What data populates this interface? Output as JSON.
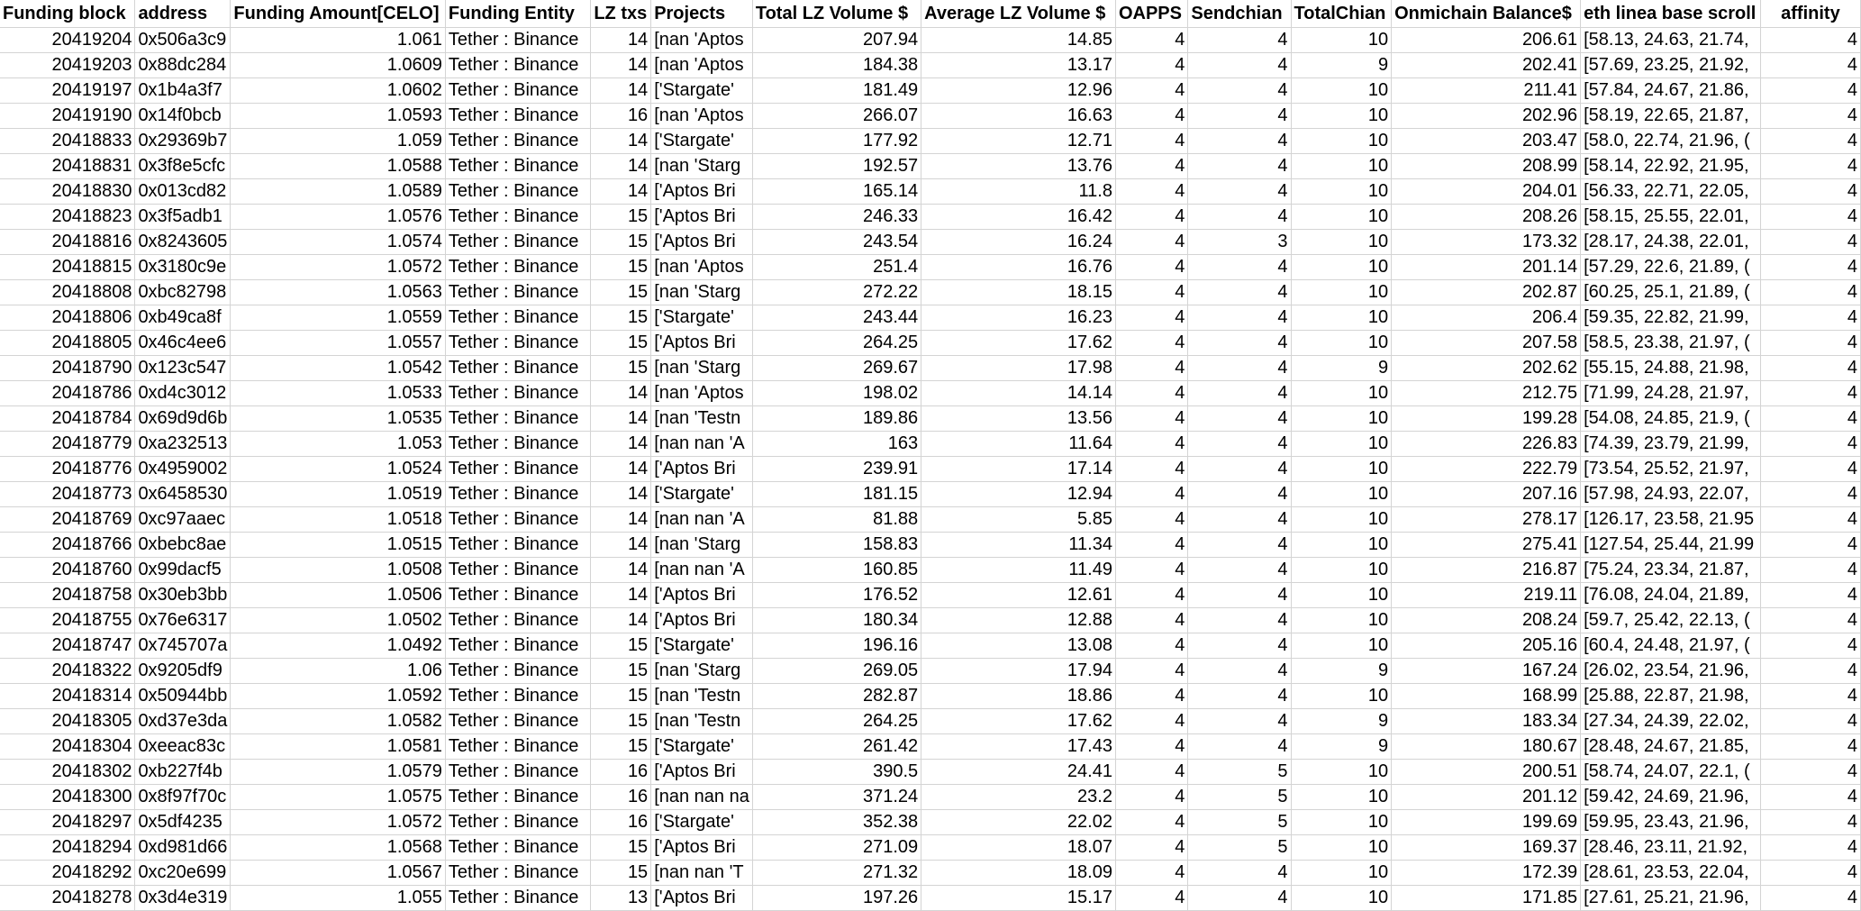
{
  "columns": [
    "Funding block",
    "address",
    "Funding Amount[CELO]",
    "Funding Entity",
    "LZ txs",
    "Projects",
    "Total LZ Volume $",
    "Average LZ Volume $",
    "OAPPS",
    "Sendchian",
    "TotalChian",
    "Onmichain Balance$",
    "eth linea base scroll",
    "affinity"
  ],
  "rows": [
    [
      "20419204",
      "0x506a3c9",
      "1.061",
      "Tether : Binance",
      "14",
      "[nan 'Aptos",
      "207.94",
      "14.85",
      "4",
      "4",
      "10",
      "206.61",
      "[58.13, 24.63, 21.74,",
      "4"
    ],
    [
      "20419203",
      "0x88dc284",
      "1.0609",
      "Tether : Binance",
      "14",
      "[nan 'Aptos",
      "184.38",
      "13.17",
      "4",
      "4",
      "9",
      "202.41",
      "[57.69, 23.25, 21.92,",
      "4"
    ],
    [
      "20419197",
      "0x1b4a3f7",
      "1.0602",
      "Tether : Binance",
      "14",
      "['Stargate'",
      "181.49",
      "12.96",
      "4",
      "4",
      "10",
      "211.41",
      "[57.84, 24.67, 21.86,",
      "4"
    ],
    [
      "20419190",
      "0x14f0bcb",
      "1.0593",
      "Tether : Binance",
      "16",
      "[nan 'Aptos",
      "266.07",
      "16.63",
      "4",
      "4",
      "10",
      "202.96",
      "[58.19, 22.65, 21.87,",
      "4"
    ],
    [
      "20418833",
      "0x29369b7",
      "1.059",
      "Tether : Binance",
      "14",
      "['Stargate'",
      "177.92",
      "12.71",
      "4",
      "4",
      "10",
      "203.47",
      "[58.0, 22.74, 21.96, (",
      "4"
    ],
    [
      "20418831",
      "0x3f8e5cfc",
      "1.0588",
      "Tether : Binance",
      "14",
      "[nan 'Starg",
      "192.57",
      "13.76",
      "4",
      "4",
      "10",
      "208.99",
      "[58.14, 22.92, 21.95,",
      "4"
    ],
    [
      "20418830",
      "0x013cd82",
      "1.0589",
      "Tether : Binance",
      "14",
      "['Aptos Bri",
      "165.14",
      "11.8",
      "4",
      "4",
      "10",
      "204.01",
      "[56.33, 22.71, 22.05,",
      "4"
    ],
    [
      "20418823",
      "0x3f5adb1",
      "1.0576",
      "Tether : Binance",
      "15",
      "['Aptos Bri",
      "246.33",
      "16.42",
      "4",
      "4",
      "10",
      "208.26",
      "[58.15, 25.55, 22.01,",
      "4"
    ],
    [
      "20418816",
      "0x8243605",
      "1.0574",
      "Tether : Binance",
      "15",
      "['Aptos Bri",
      "243.54",
      "16.24",
      "4",
      "3",
      "10",
      "173.32",
      "[28.17, 24.38, 22.01,",
      "4"
    ],
    [
      "20418815",
      "0x3180c9e",
      "1.0572",
      "Tether : Binance",
      "15",
      "[nan 'Aptos",
      "251.4",
      "16.76",
      "4",
      "4",
      "10",
      "201.14",
      "[57.29, 22.6, 21.89, (",
      "4"
    ],
    [
      "20418808",
      "0xbc82798",
      "1.0563",
      "Tether : Binance",
      "15",
      "[nan 'Starg",
      "272.22",
      "18.15",
      "4",
      "4",
      "10",
      "202.87",
      "[60.25, 25.1, 21.89, (",
      "4"
    ],
    [
      "20418806",
      "0xb49ca8f",
      "1.0559",
      "Tether : Binance",
      "15",
      "['Stargate'",
      "243.44",
      "16.23",
      "4",
      "4",
      "10",
      "206.4",
      "[59.35, 22.82, 21.99,",
      "4"
    ],
    [
      "20418805",
      "0x46c4ee6",
      "1.0557",
      "Tether : Binance",
      "15",
      "['Aptos Bri",
      "264.25",
      "17.62",
      "4",
      "4",
      "10",
      "207.58",
      "[58.5, 23.38, 21.97, (",
      "4"
    ],
    [
      "20418790",
      "0x123c547",
      "1.0542",
      "Tether : Binance",
      "15",
      "[nan 'Starg",
      "269.67",
      "17.98",
      "4",
      "4",
      "9",
      "202.62",
      "[55.15, 24.88, 21.98,",
      "4"
    ],
    [
      "20418786",
      "0xd4c3012",
      "1.0533",
      "Tether : Binance",
      "14",
      "[nan 'Aptos",
      "198.02",
      "14.14",
      "4",
      "4",
      "10",
      "212.75",
      "[71.99, 24.28, 21.97,",
      "4"
    ],
    [
      "20418784",
      "0x69d9d6b",
      "1.0535",
      "Tether : Binance",
      "14",
      "[nan 'Testn",
      "189.86",
      "13.56",
      "4",
      "4",
      "10",
      "199.28",
      "[54.08, 24.85, 21.9, (",
      "4"
    ],
    [
      "20418779",
      "0xa232513",
      "1.053",
      "Tether : Binance",
      "14",
      "[nan nan 'A",
      "163",
      "11.64",
      "4",
      "4",
      "10",
      "226.83",
      "[74.39, 23.79, 21.99,",
      "4"
    ],
    [
      "20418776",
      "0x4959002",
      "1.0524",
      "Tether : Binance",
      "14",
      "['Aptos Bri",
      "239.91",
      "17.14",
      "4",
      "4",
      "10",
      "222.79",
      "[73.54, 25.52, 21.97,",
      "4"
    ],
    [
      "20418773",
      "0x6458530",
      "1.0519",
      "Tether : Binance",
      "14",
      "['Stargate'",
      "181.15",
      "12.94",
      "4",
      "4",
      "10",
      "207.16",
      "[57.98, 24.93, 22.07,",
      "4"
    ],
    [
      "20418769",
      "0xc97aaec",
      "1.0518",
      "Tether : Binance",
      "14",
      "[nan nan 'A",
      "81.88",
      "5.85",
      "4",
      "4",
      "10",
      "278.17",
      "[126.17, 23.58, 21.95",
      "4"
    ],
    [
      "20418766",
      "0xbebc8ae",
      "1.0515",
      "Tether : Binance",
      "14",
      "[nan 'Starg",
      "158.83",
      "11.34",
      "4",
      "4",
      "10",
      "275.41",
      "[127.54, 25.44, 21.99",
      "4"
    ],
    [
      "20418760",
      "0x99dacf5",
      "1.0508",
      "Tether : Binance",
      "14",
      "[nan nan 'A",
      "160.85",
      "11.49",
      "4",
      "4",
      "10",
      "216.87",
      "[75.24, 23.34, 21.87,",
      "4"
    ],
    [
      "20418758",
      "0x30eb3bb",
      "1.0506",
      "Tether : Binance",
      "14",
      "['Aptos Bri",
      "176.52",
      "12.61",
      "4",
      "4",
      "10",
      "219.11",
      "[76.08, 24.04, 21.89,",
      "4"
    ],
    [
      "20418755",
      "0x76e6317",
      "1.0502",
      "Tether : Binance",
      "14",
      "['Aptos Bri",
      "180.34",
      "12.88",
      "4",
      "4",
      "10",
      "208.24",
      "[59.7, 25.42, 22.13, (",
      "4"
    ],
    [
      "20418747",
      "0x745707a",
      "1.0492",
      "Tether : Binance",
      "15",
      "['Stargate'",
      "196.16",
      "13.08",
      "4",
      "4",
      "10",
      "205.16",
      "[60.4, 24.48, 21.97, (",
      "4"
    ],
    [
      "20418322",
      "0x9205df9",
      "1.06",
      "Tether : Binance",
      "15",
      "[nan 'Starg",
      "269.05",
      "17.94",
      "4",
      "4",
      "9",
      "167.24",
      "[26.02, 23.54, 21.96,",
      "4"
    ],
    [
      "20418314",
      "0x50944bb",
      "1.0592",
      "Tether : Binance",
      "15",
      "[nan 'Testn",
      "282.87",
      "18.86",
      "4",
      "4",
      "10",
      "168.99",
      "[25.88, 22.87, 21.98,",
      "4"
    ],
    [
      "20418305",
      "0xd37e3da",
      "1.0582",
      "Tether : Binance",
      "15",
      "[nan 'Testn",
      "264.25",
      "17.62",
      "4",
      "4",
      "9",
      "183.34",
      "[27.34, 24.39, 22.02,",
      "4"
    ],
    [
      "20418304",
      "0xeeac83c",
      "1.0581",
      "Tether : Binance",
      "15",
      "['Stargate'",
      "261.42",
      "17.43",
      "4",
      "4",
      "9",
      "180.67",
      "[28.48, 24.67, 21.85,",
      "4"
    ],
    [
      "20418302",
      "0xb227f4b",
      "1.0579",
      "Tether : Binance",
      "16",
      "['Aptos Bri",
      "390.5",
      "24.41",
      "4",
      "5",
      "10",
      "200.51",
      "[58.74, 24.07, 22.1, (",
      "4"
    ],
    [
      "20418300",
      "0x8f97f70c",
      "1.0575",
      "Tether : Binance",
      "16",
      "[nan nan na",
      "371.24",
      "23.2",
      "4",
      "5",
      "10",
      "201.12",
      "[59.42, 24.69, 21.96,",
      "4"
    ],
    [
      "20418297",
      "0x5df4235",
      "1.0572",
      "Tether : Binance",
      "16",
      "['Stargate'",
      "352.38",
      "22.02",
      "4",
      "5",
      "10",
      "199.69",
      "[59.95, 23.43, 21.96,",
      "4"
    ],
    [
      "20418294",
      "0xd981d66",
      "1.0568",
      "Tether : Binance",
      "15",
      "['Aptos Bri",
      "271.09",
      "18.07",
      "4",
      "5",
      "10",
      "169.37",
      "[28.46, 23.11, 21.92,",
      "4"
    ],
    [
      "20418292",
      "0xc20e699",
      "1.0567",
      "Tether : Binance",
      "15",
      "[nan nan 'T",
      "271.32",
      "18.09",
      "4",
      "4",
      "10",
      "172.39",
      "[28.61, 23.53, 22.04,",
      "4"
    ],
    [
      "20418278",
      "0x3d4e319",
      "1.055",
      "Tether : Binance",
      "13",
      "['Aptos Bri",
      "197.26",
      "15.17",
      "4",
      "4",
      "10",
      "171.85",
      "[27.61, 25.21, 21.96,",
      "4"
    ]
  ]
}
